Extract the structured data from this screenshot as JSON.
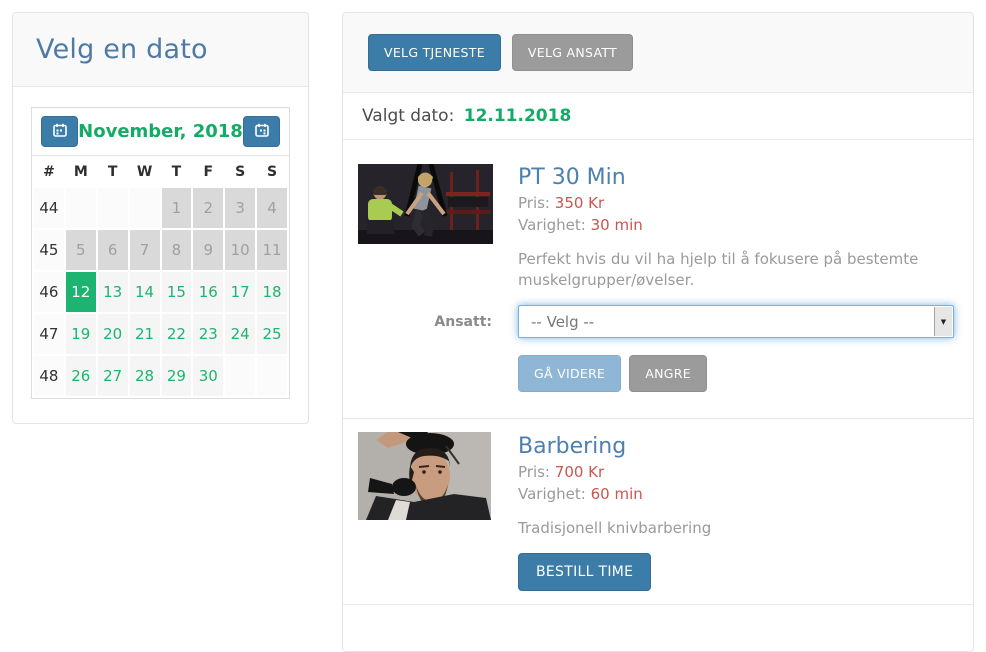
{
  "colors": {
    "accent_blue": "#3c7ca9",
    "light_blue": "#8fb7d5",
    "gray_button": "#9b9b9b",
    "green": "#1db471",
    "red_value": "#c9564f",
    "title_blue": "#4d80ae",
    "heading_blue": "#4f7aa3"
  },
  "date_panel": {
    "title": "Velg en dato",
    "calendar": {
      "month_label": "November, 2018",
      "prev_icon": "calendar-prev-icon",
      "next_icon": "calendar-next-icon",
      "day_headers": [
        "#",
        "M",
        "T",
        "W",
        "T",
        "F",
        "S",
        "S"
      ],
      "weeks": [
        {
          "num": "44",
          "days": [
            {
              "d": "",
              "state": "empty"
            },
            {
              "d": "",
              "state": "empty"
            },
            {
              "d": "",
              "state": "empty"
            },
            {
              "d": "1",
              "state": "disabled"
            },
            {
              "d": "2",
              "state": "disabled"
            },
            {
              "d": "3",
              "state": "disabled"
            },
            {
              "d": "4",
              "state": "disabled"
            }
          ]
        },
        {
          "num": "45",
          "days": [
            {
              "d": "5",
              "state": "disabled"
            },
            {
              "d": "6",
              "state": "disabled"
            },
            {
              "d": "7",
              "state": "disabled"
            },
            {
              "d": "8",
              "state": "disabled"
            },
            {
              "d": "9",
              "state": "disabled"
            },
            {
              "d": "10",
              "state": "disabled"
            },
            {
              "d": "11",
              "state": "disabled"
            }
          ]
        },
        {
          "num": "46",
          "days": [
            {
              "d": "12",
              "state": "selected"
            },
            {
              "d": "13",
              "state": "active"
            },
            {
              "d": "14",
              "state": "active"
            },
            {
              "d": "15",
              "state": "active"
            },
            {
              "d": "16",
              "state": "active"
            },
            {
              "d": "17",
              "state": "active"
            },
            {
              "d": "18",
              "state": "active"
            }
          ]
        },
        {
          "num": "47",
          "days": [
            {
              "d": "19",
              "state": "active"
            },
            {
              "d": "20",
              "state": "active"
            },
            {
              "d": "21",
              "state": "active"
            },
            {
              "d": "22",
              "state": "active"
            },
            {
              "d": "23",
              "state": "active"
            },
            {
              "d": "24",
              "state": "active"
            },
            {
              "d": "25",
              "state": "active"
            }
          ]
        },
        {
          "num": "48",
          "days": [
            {
              "d": "26",
              "state": "active"
            },
            {
              "d": "27",
              "state": "active"
            },
            {
              "d": "28",
              "state": "active"
            },
            {
              "d": "29",
              "state": "active"
            },
            {
              "d": "30",
              "state": "active"
            },
            {
              "d": "",
              "state": "empty"
            },
            {
              "d": "",
              "state": "empty"
            }
          ]
        }
      ],
      "selected_day": "12"
    }
  },
  "toolbar": {
    "velg_tjeneste": "VELG TJENESTE",
    "velg_ansatt": "VELG ANSATT"
  },
  "selected_date": {
    "label": "Valgt dato:",
    "value": "12.11.2018"
  },
  "services": [
    {
      "title": "PT 30 Min",
      "price_label": "Pris:",
      "price": "350 Kr",
      "duration_label": "Varighet:",
      "duration": "30 min",
      "description": "Perfekt hvis du vil ha hjelp til å fokusere på bestemte muskelgrupper/øvelser.",
      "ansatt_label": "Ansatt:",
      "select_value": "-- Velg --",
      "buttons": {
        "primary": "GÅ VIDERE",
        "secondary": "ANGRE"
      }
    },
    {
      "title": "Barbering",
      "price_label": "Pris:",
      "price": "700 Kr",
      "duration_label": "Varighet:",
      "duration": "60 min",
      "description": "Tradisjonell knivbarbering",
      "buttons": {
        "primary": "BESTILL TIME"
      }
    }
  ]
}
